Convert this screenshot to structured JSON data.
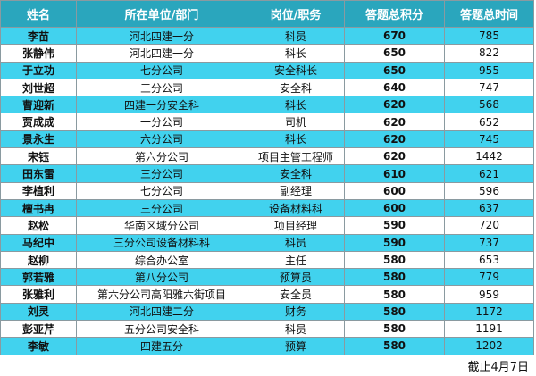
{
  "table": {
    "header": [
      "姓名",
      "所在单位/部门",
      "岗位/职务",
      "答题总积分",
      "答题总时间"
    ],
    "rows": [
      [
        "李苗",
        "河北四建一分",
        "科员",
        670,
        785
      ],
      [
        "张静伟",
        "河北四建一分",
        "科长",
        650,
        822
      ],
      [
        "于立功",
        "七分公司",
        "安全科长",
        650,
        955
      ],
      [
        "刘世超",
        "三分公司",
        "安全科",
        640,
        747
      ],
      [
        "曹迎新",
        "四建一分安全科",
        "科长",
        620,
        568
      ],
      [
        "贾成成",
        "一分公司",
        "司机",
        620,
        652
      ],
      [
        "景永生",
        "六分公司",
        "科长",
        620,
        745
      ],
      [
        "宋钰",
        "第六分公司",
        "项目主管工程师",
        620,
        1442
      ],
      [
        "田东雷",
        "三分公司",
        "安全科",
        610,
        621
      ],
      [
        "李植利",
        "七分公司",
        "副经理",
        600,
        596
      ],
      [
        "檀书冉",
        "三分公司",
        "设备材料科",
        600,
        637
      ],
      [
        "赵松",
        "华南区域分公司",
        "项目经理",
        590,
        720
      ],
      [
        "马纪中",
        "三分公司设备材料科",
        "科员",
        590,
        737
      ],
      [
        "赵柳",
        "综合办公室",
        "主任",
        580,
        653
      ],
      [
        "郭若雅",
        "第八分公司",
        "预算员",
        580,
        779
      ],
      [
        "张雅利",
        "第六分公司高阳雅六街项目",
        "安全员",
        580,
        959
      ],
      [
        "刘灵",
        "河北四建二分",
        "财务",
        580,
        1172
      ],
      [
        "彭亚芹",
        "五分公司安全科",
        "科员",
        580,
        1191
      ],
      [
        "李敏",
        "四建五分",
        "预算",
        580,
        1202
      ]
    ]
  },
  "footer": "截止4月7日"
}
